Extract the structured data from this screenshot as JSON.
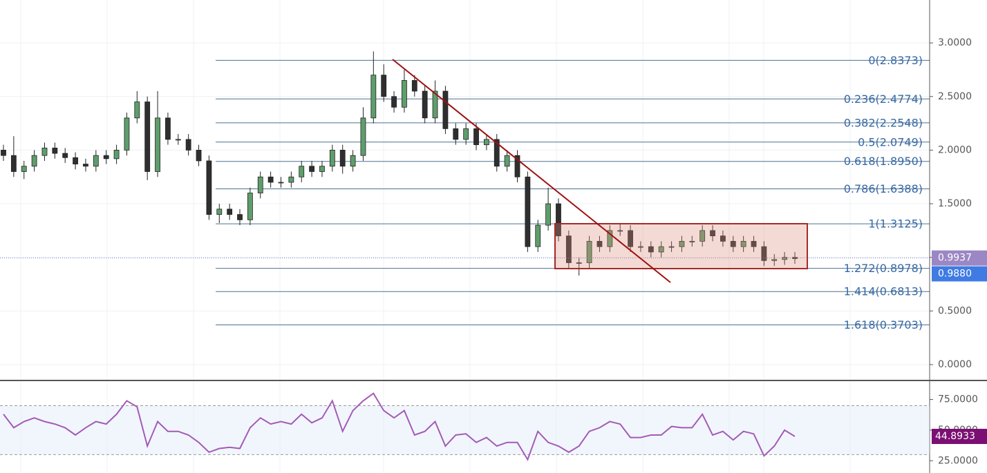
{
  "chart_data": [
    {
      "type": "candlestick",
      "up_color": "#5e9e6c",
      "down_color": "#2f2f2f",
      "open": [
        2.0,
        1.95,
        1.8,
        1.85,
        1.95,
        2.02,
        1.97,
        1.93,
        1.87,
        1.85,
        1.95,
        1.92,
        2.0,
        2.3,
        2.45,
        1.8,
        2.3,
        2.1,
        2.1,
        2.0,
        1.9,
        1.4,
        1.45,
        1.4,
        1.35,
        1.6,
        1.75,
        1.7,
        1.7,
        1.75,
        1.85,
        1.8,
        1.85,
        2.0,
        1.85,
        1.95,
        2.3,
        2.7,
        2.5,
        2.4,
        2.65,
        2.55,
        2.3,
        2.55,
        2.2,
        2.1,
        2.2,
        2.05,
        2.1,
        1.85,
        1.95,
        1.75,
        1.1,
        1.3,
        1.5,
        1.2,
        0.95,
        0.95,
        1.15,
        1.1,
        1.25,
        1.25,
        1.1,
        1.1,
        1.05,
        1.1,
        1.1,
        1.15,
        1.15,
        1.25,
        1.2,
        1.15,
        1.1,
        1.15,
        1.1,
        0.97,
        0.98,
        1.0
      ],
      "high": [
        2.05,
        2.13,
        1.9,
        2.0,
        2.07,
        2.07,
        2.02,
        1.98,
        1.92,
        2.0,
        2.0,
        2.05,
        2.35,
        2.55,
        2.5,
        2.55,
        2.35,
        2.15,
        2.15,
        2.05,
        1.95,
        1.5,
        1.5,
        1.45,
        1.65,
        1.8,
        1.8,
        1.75,
        1.8,
        1.9,
        1.9,
        1.9,
        2.05,
        2.05,
        2.0,
        2.4,
        2.92,
        2.8,
        2.55,
        2.75,
        2.7,
        2.6,
        2.65,
        2.6,
        2.25,
        2.25,
        2.25,
        2.15,
        2.15,
        2.0,
        2.0,
        1.8,
        1.35,
        1.65,
        1.55,
        1.25,
        1.0,
        1.2,
        1.2,
        1.3,
        1.32,
        1.3,
        1.15,
        1.15,
        1.15,
        1.15,
        1.2,
        1.2,
        1.3,
        1.3,
        1.25,
        1.2,
        1.2,
        1.2,
        1.15,
        1.03,
        1.05,
        1.05
      ],
      "low": [
        1.9,
        1.75,
        1.73,
        1.8,
        1.9,
        1.92,
        1.88,
        1.82,
        1.8,
        1.8,
        1.87,
        1.87,
        1.95,
        2.25,
        1.72,
        1.75,
        2.05,
        2.05,
        1.95,
        1.85,
        1.35,
        1.32,
        1.35,
        1.3,
        1.3,
        1.55,
        1.65,
        1.65,
        1.65,
        1.7,
        1.75,
        1.75,
        1.8,
        1.78,
        1.8,
        1.9,
        2.25,
        2.45,
        2.35,
        2.35,
        2.5,
        2.25,
        2.25,
        2.15,
        2.05,
        2.05,
        2.0,
        2.0,
        1.8,
        1.8,
        1.7,
        1.05,
        1.05,
        1.25,
        1.15,
        0.9,
        0.83,
        0.9,
        1.05,
        1.05,
        1.2,
        1.05,
        1.05,
        1.0,
        1.0,
        1.05,
        1.05,
        1.1,
        1.1,
        1.15,
        1.1,
        1.05,
        1.05,
        1.05,
        0.92,
        0.92,
        0.93,
        0.94
      ],
      "close": [
        1.95,
        1.8,
        1.85,
        1.95,
        2.02,
        1.97,
        1.93,
        1.87,
        1.85,
        1.95,
        1.92,
        2.0,
        2.3,
        2.45,
        1.8,
        2.3,
        2.1,
        2.1,
        2.0,
        1.9,
        1.4,
        1.45,
        1.4,
        1.35,
        1.6,
        1.75,
        1.7,
        1.7,
        1.75,
        1.85,
        1.8,
        1.85,
        2.0,
        1.85,
        1.95,
        2.3,
        2.7,
        2.5,
        2.4,
        2.65,
        2.55,
        2.3,
        2.55,
        2.2,
        2.1,
        2.2,
        2.05,
        2.1,
        1.85,
        1.95,
        1.75,
        1.1,
        1.3,
        1.5,
        1.2,
        0.95,
        0.95,
        1.15,
        1.1,
        1.25,
        1.25,
        1.1,
        1.1,
        1.05,
        1.1,
        1.1,
        1.15,
        1.15,
        1.25,
        1.2,
        1.15,
        1.1,
        1.15,
        1.1,
        0.97,
        0.98,
        1.0,
        0.988
      ],
      "ylim": [
        0,
        3.4
      ],
      "yticks": [
        {
          "value": 0,
          "label": "0.0000"
        },
        {
          "value": 0.5,
          "label": "0.5000"
        },
        {
          "value": 1,
          "label": "1.0000"
        },
        {
          "value": 1.5,
          "label": "1.5000"
        },
        {
          "value": 2,
          "label": "2.0000"
        },
        {
          "value": 2.5,
          "label": "2.5000"
        },
        {
          "value": 3,
          "label": "3.0000"
        }
      ],
      "fib_levels": [
        {
          "value": 2.8373,
          "label": "0(2.8373)"
        },
        {
          "value": 2.4774,
          "label": "0.236(2.4774)"
        },
        {
          "value": 2.2548,
          "label": "0.382(2.2548)"
        },
        {
          "value": 2.0749,
          "label": "0.5(2.0749)"
        },
        {
          "value": 1.895,
          "label": "0.618(1.8950)"
        },
        {
          "value": 1.6388,
          "label": "0.786(1.6388)"
        },
        {
          "value": 1.3125,
          "label": "1(1.3125)"
        },
        {
          "value": 0.8978,
          "label": "1.272(0.8978)"
        },
        {
          "value": 0.6813,
          "label": "1.414(0.6813)"
        },
        {
          "value": 0.3703,
          "label": "1.618(0.3703)"
        }
      ],
      "ma_value": {
        "value": 0.9937,
        "label": "0.9937"
      },
      "last_price": {
        "value": 0.988,
        "label": "0.9880"
      }
    },
    {
      "type": "line",
      "color": "#a35bb5",
      "values": [
        63,
        52,
        57,
        60,
        57,
        55,
        52,
        46,
        52,
        57,
        55,
        63,
        74,
        69,
        37,
        57,
        49,
        49,
        46,
        40,
        32,
        35,
        36,
        35,
        52,
        60,
        55,
        57,
        55,
        63,
        56,
        60,
        74,
        49,
        66,
        74,
        80,
        66,
        60,
        66,
        46,
        49,
        57,
        37,
        46,
        47,
        40,
        44,
        37,
        40,
        40,
        26,
        49,
        40,
        37,
        32,
        37,
        49,
        52,
        57,
        55,
        44,
        44,
        46,
        46,
        53,
        52,
        52,
        63,
        46,
        49,
        42,
        49,
        47,
        29,
        37,
        50,
        44.8933
      ],
      "ylim": [
        15,
        90
      ],
      "yticks": [
        {
          "value": 75,
          "label": "75.0000"
        },
        {
          "value": 50,
          "label": "50.0000"
        },
        {
          "value": 25,
          "label": "25.0000"
        }
      ],
      "bands": [
        70,
        30
      ],
      "last_value": {
        "value": 44.8933,
        "label": "44.8933"
      }
    }
  ]
}
